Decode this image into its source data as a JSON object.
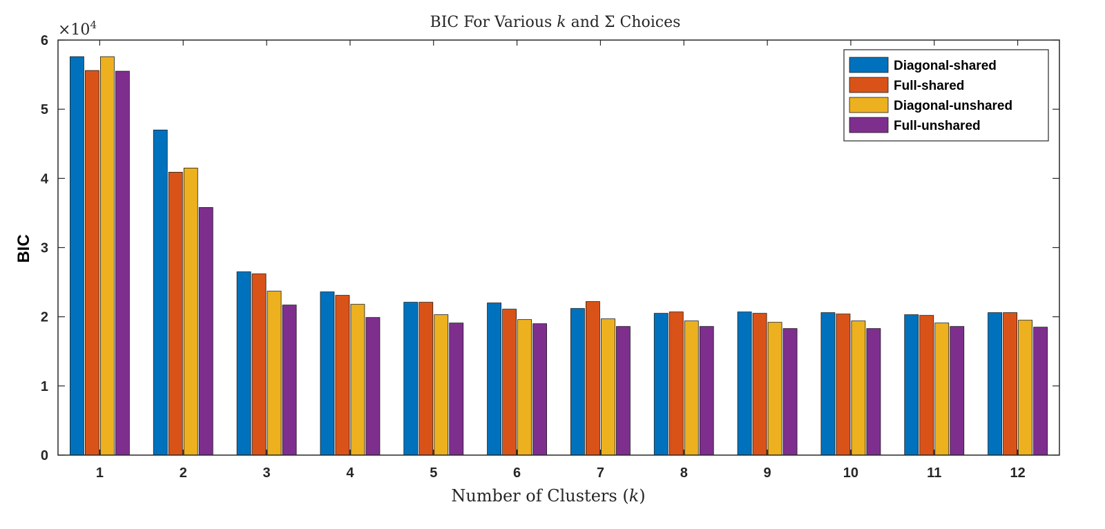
{
  "chart_data": {
    "type": "bar",
    "title": {
      "prefix": "BIC For Various ",
      "k": "k",
      "middle": " and ",
      "sigma": "Σ",
      "suffix": " Choices"
    },
    "xlabel": {
      "prefix": "Number of Clusters (",
      "k": "k",
      "suffix": ")"
    },
    "ylabel": "BIC",
    "exponent_label": {
      "base": "×10",
      "power": "4"
    },
    "categories": [
      "1",
      "2",
      "3",
      "4",
      "5",
      "6",
      "7",
      "8",
      "9",
      "10",
      "11",
      "12"
    ],
    "ylim": [
      0,
      60000
    ],
    "yticks": [
      0,
      10000,
      20000,
      30000,
      40000,
      50000,
      60000
    ],
    "ytick_labels": [
      "0",
      "1",
      "2",
      "3",
      "4",
      "5",
      "6"
    ],
    "grid": false,
    "legend_position": "top-right",
    "series": [
      {
        "name": "Diagonal-shared",
        "color": "#0072BD",
        "values": [
          57600,
          47000,
          26500,
          23600,
          22100,
          22000,
          21200,
          20500,
          20700,
          20600,
          20300,
          20600
        ]
      },
      {
        "name": "Full-shared",
        "color": "#D95319",
        "values": [
          55600,
          40900,
          26200,
          23100,
          22100,
          21100,
          22200,
          20700,
          20500,
          20400,
          20200,
          20600
        ]
      },
      {
        "name": "Diagonal-unshared",
        "color": "#EDB120",
        "values": [
          57600,
          41500,
          23700,
          21800,
          20300,
          19600,
          19700,
          19400,
          19200,
          19400,
          19100,
          19500
        ]
      },
      {
        "name": "Full-unshared",
        "color": "#7E2F8E",
        "values": [
          55500,
          35800,
          21700,
          19900,
          19100,
          19000,
          18600,
          18600,
          18300,
          18300,
          18600,
          18500
        ]
      }
    ]
  }
}
